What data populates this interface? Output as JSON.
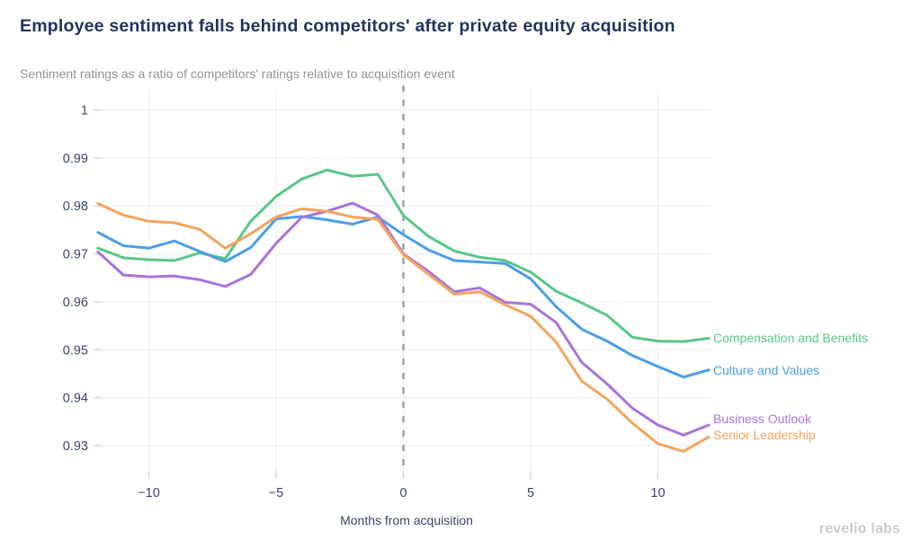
{
  "header": {
    "title": "Employee sentiment falls behind competitors' after private equity acquisition",
    "subtitle": "Sentiment ratings as a ratio of competitors' ratings relative to acquisition event"
  },
  "chart_data": {
    "type": "line",
    "title": "Employee sentiment falls behind competitors' after private equity acquisition",
    "subtitle": "Sentiment ratings as a ratio of competitors' ratings relative to acquisition event",
    "xlabel": "Months from acquisition",
    "ylabel": "",
    "xlim": [
      -12.3,
      12.3
    ],
    "ylim": [
      0.9225,
      1.003
    ],
    "grid": true,
    "legend_position": "right",
    "event_line": {
      "x": 0,
      "style": "dashed",
      "color": "#9aa1ad"
    },
    "xticks": [
      {
        "value": -10,
        "label": "−10"
      },
      {
        "value": -5,
        "label": "−5"
      },
      {
        "value": 0,
        "label": "0"
      },
      {
        "value": 5,
        "label": "5"
      },
      {
        "value": 10,
        "label": "10"
      }
    ],
    "yticks": [
      {
        "value": 1.0,
        "label": "1"
      },
      {
        "value": 0.99,
        "label": "0.99"
      },
      {
        "value": 0.98,
        "label": "0.98"
      },
      {
        "value": 0.97,
        "label": "0.97"
      },
      {
        "value": 0.96,
        "label": "0.96"
      },
      {
        "value": 0.95,
        "label": "0.95"
      },
      {
        "value": 0.94,
        "label": "0.94"
      },
      {
        "value": 0.93,
        "label": "0.93"
      }
    ],
    "x": [
      -12,
      -11,
      -10,
      -9,
      -8,
      -7,
      -6,
      -5,
      -4,
      -3,
      -2,
      -1,
      0,
      1,
      2,
      3,
      4,
      5,
      6,
      7,
      8,
      9,
      10,
      11,
      12
    ],
    "series": [
      {
        "name": "Compensation and Benefits",
        "color": "#57c785",
        "values": [
          0.9712,
          0.9692,
          0.9688,
          0.9686,
          0.9702,
          0.969,
          0.9768,
          0.982,
          0.9856,
          0.9875,
          0.9862,
          0.9866,
          0.978,
          0.9736,
          0.9706,
          0.9693,
          0.9686,
          0.9662,
          0.9622,
          0.9598,
          0.9572,
          0.9526,
          0.9518,
          0.9517,
          0.9524
        ]
      },
      {
        "name": "Culture and Values",
        "color": "#4a9ee7",
        "values": [
          0.9745,
          0.9717,
          0.9712,
          0.9727,
          0.9705,
          0.9684,
          0.9713,
          0.9773,
          0.9778,
          0.9771,
          0.9762,
          0.9777,
          0.974,
          0.9708,
          0.9686,
          0.9683,
          0.968,
          0.9648,
          0.959,
          0.9543,
          0.9518,
          0.9488,
          0.9465,
          0.9443,
          0.9458
        ]
      },
      {
        "name": "Business Outlook",
        "color": "#a874d8",
        "values": [
          0.9704,
          0.9656,
          0.9652,
          0.9654,
          0.9646,
          0.9632,
          0.9657,
          0.9722,
          0.9776,
          0.9789,
          0.9806,
          0.9781,
          0.97,
          0.9663,
          0.9621,
          0.9629,
          0.9599,
          0.9595,
          0.9557,
          0.9474,
          0.9429,
          0.9378,
          0.9343,
          0.9322,
          0.9343
        ]
      },
      {
        "name": "Senior Leadership",
        "color": "#f5a35c",
        "values": [
          0.9805,
          0.9781,
          0.9768,
          0.9765,
          0.9751,
          0.9712,
          0.9742,
          0.9777,
          0.9794,
          0.9789,
          0.9777,
          0.9772,
          0.9698,
          0.9657,
          0.9616,
          0.9621,
          0.9594,
          0.957,
          0.9516,
          0.9435,
          0.9397,
          0.9347,
          0.9304,
          0.9288,
          0.9318
        ]
      }
    ]
  },
  "footer": {
    "logo": "revelio labs"
  }
}
